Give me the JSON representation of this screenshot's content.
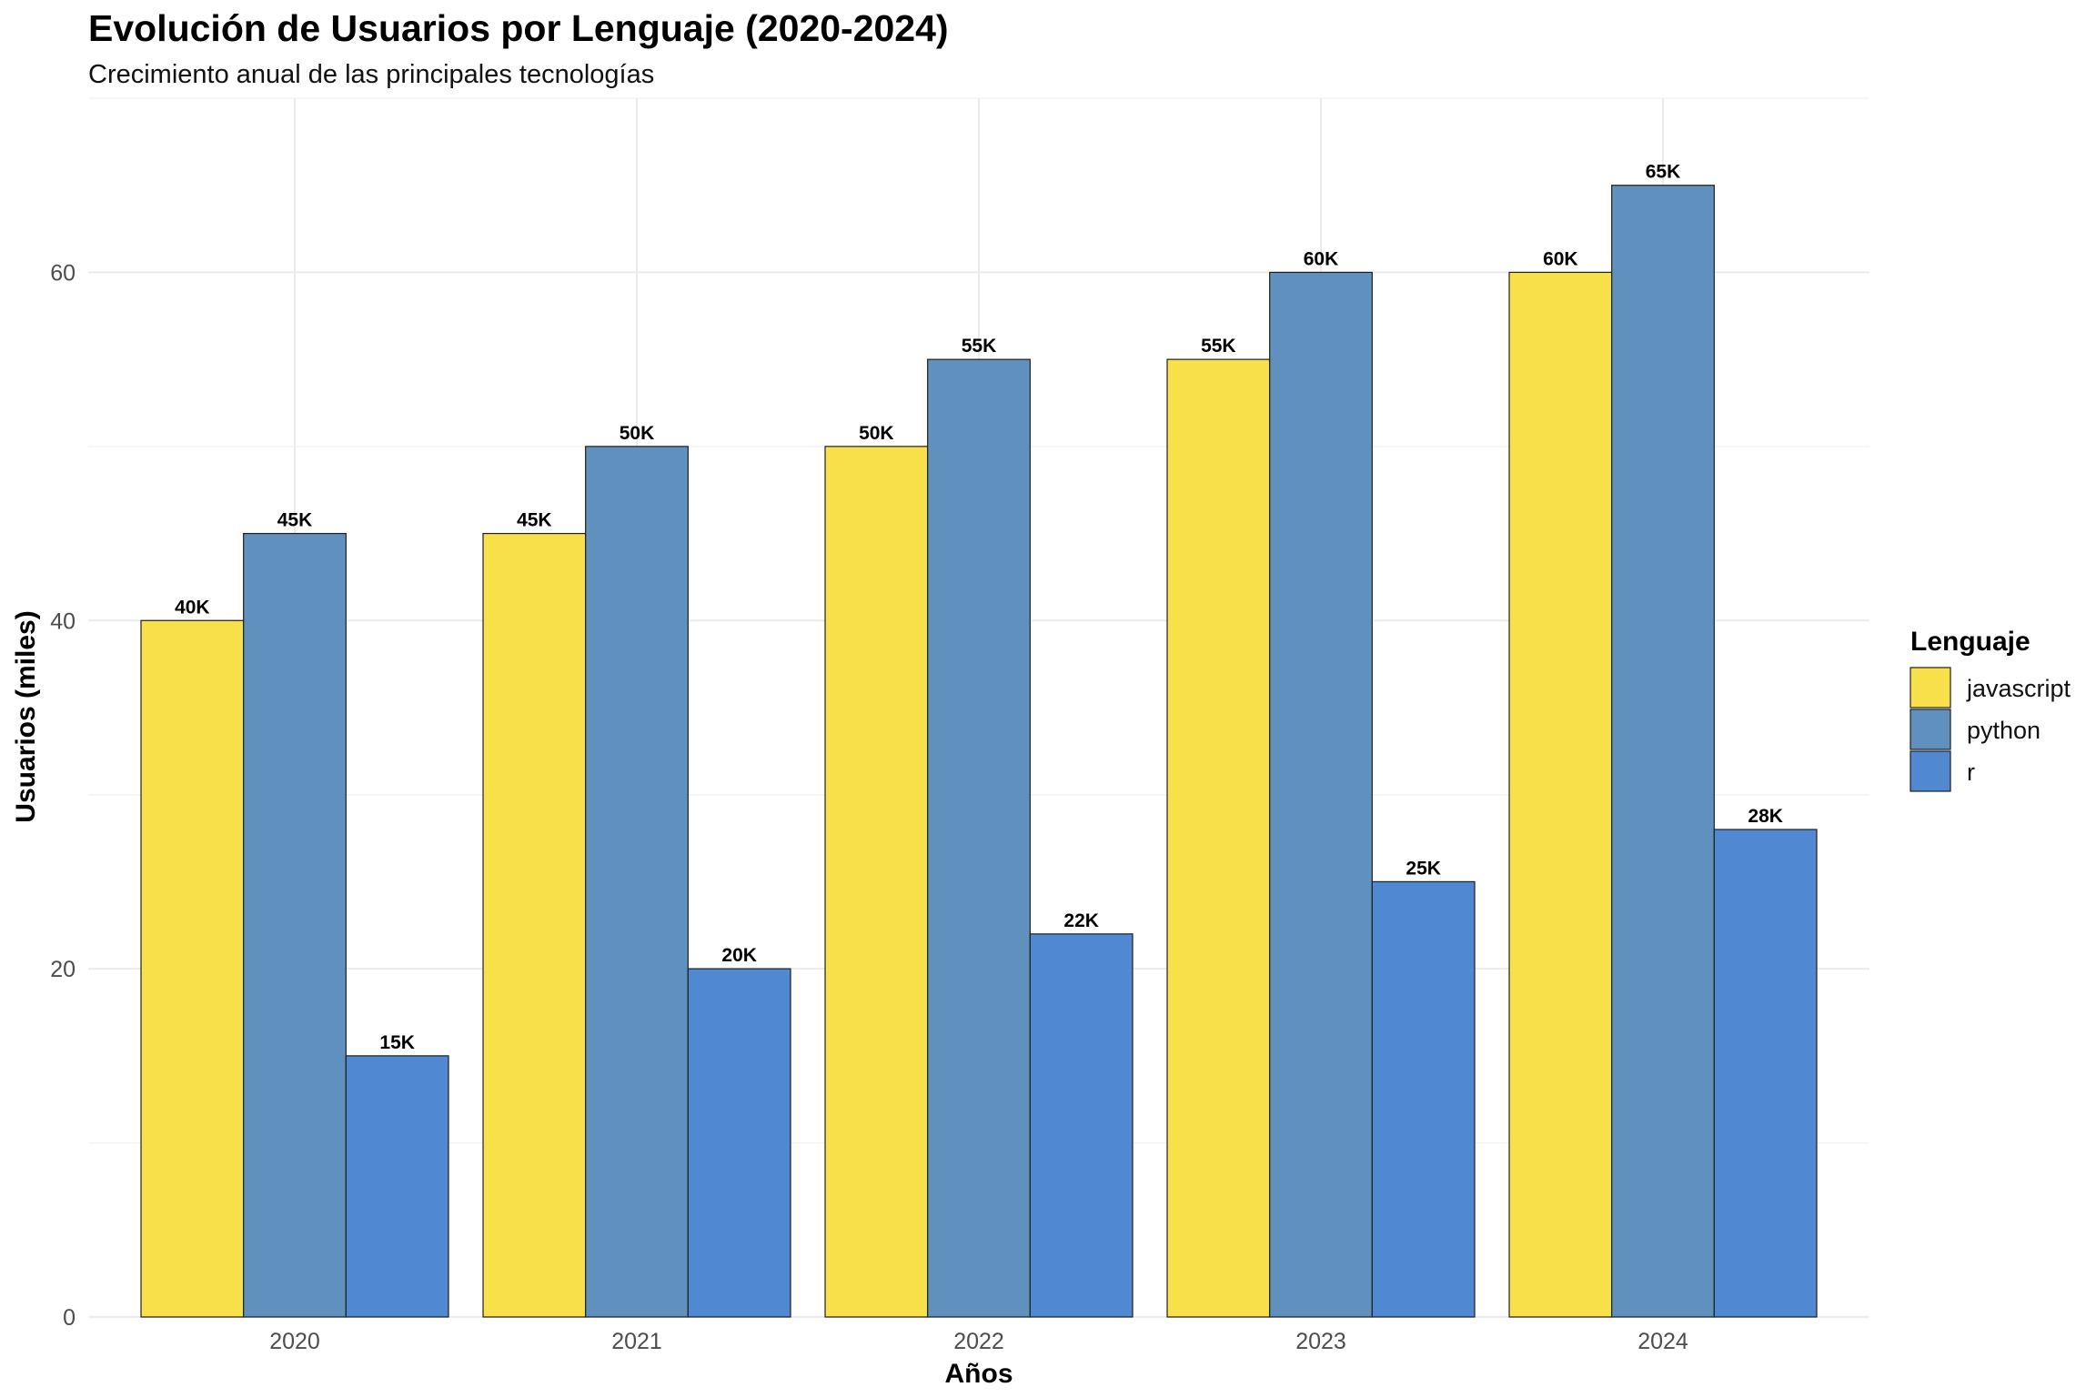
{
  "chart_data": {
    "type": "bar",
    "title": "Evolución de Usuarios por Lenguaje (2020-2024)",
    "subtitle": "Crecimiento anual de las principales tecnologías",
    "xlabel": "Años",
    "ylabel": "Usuarios (miles)",
    "categories": [
      "2020",
      "2021",
      "2022",
      "2023",
      "2024"
    ],
    "ylim": [
      0,
      70
    ],
    "yticks": [
      0,
      20,
      40,
      60
    ],
    "grid": true,
    "legend": {
      "title": "Lenguaje",
      "position": "right"
    },
    "series": [
      {
        "name": "javascript",
        "color": "#f8e04a",
        "values": [
          40,
          45,
          50,
          55,
          60
        ],
        "labels": [
          "40K",
          "45K",
          "50K",
          "55K",
          "60K"
        ]
      },
      {
        "name": "python",
        "color": "#6090bd",
        "values": [
          45,
          50,
          55,
          60,
          65
        ],
        "labels": [
          "45K",
          "50K",
          "55K",
          "60K",
          "65K"
        ]
      },
      {
        "name": "r",
        "color": "#5089d2",
        "values": [
          15,
          20,
          22,
          25,
          28
        ],
        "labels": [
          "15K",
          "20K",
          "22K",
          "25K",
          "28K"
        ]
      }
    ]
  }
}
